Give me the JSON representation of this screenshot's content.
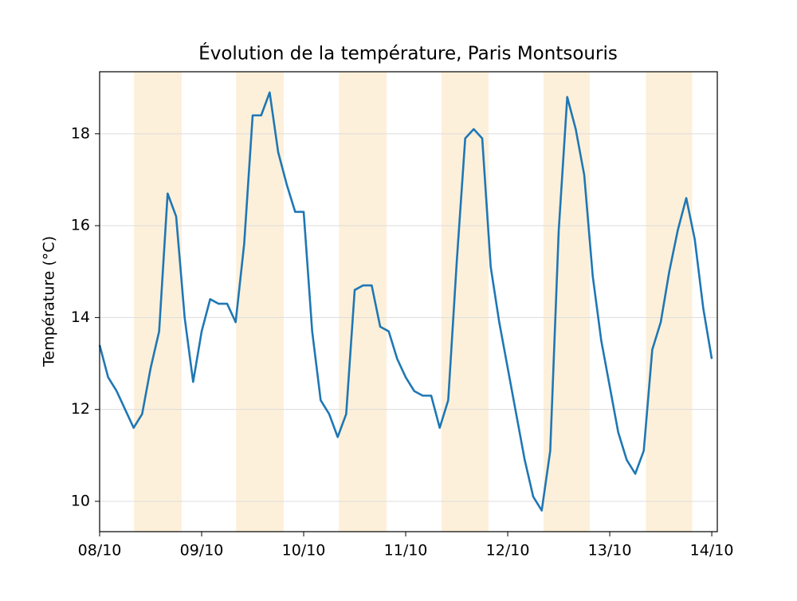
{
  "chart_data": {
    "type": "line",
    "title": "Évolution de la température, Paris Montsouris",
    "ylabel": "Température (°C)",
    "x": [
      0,
      2,
      4,
      6,
      8,
      10,
      12,
      14,
      16,
      18,
      20,
      22,
      24,
      26,
      28,
      30,
      32,
      34,
      36,
      38,
      40,
      42,
      44,
      46,
      48,
      50,
      52,
      54,
      56,
      58,
      60,
      62,
      64,
      66,
      68,
      70,
      72,
      74,
      76,
      78,
      80,
      82,
      84,
      86,
      88,
      90,
      92,
      94,
      96,
      98,
      100,
      102,
      104,
      106,
      108,
      110,
      112,
      114,
      116,
      118,
      120,
      122,
      124,
      126,
      128,
      130,
      132,
      134,
      136,
      138,
      140,
      142,
      144
    ],
    "series": [
      {
        "name": "Température",
        "color": "#1f77b4",
        "values": [
          13.4,
          12.7,
          12.4,
          12.0,
          11.6,
          11.9,
          12.9,
          13.7,
          16.7,
          16.2,
          14.0,
          12.6,
          13.7,
          14.4,
          14.3,
          14.3,
          13.9,
          15.6,
          18.4,
          18.4,
          18.9,
          17.6,
          16.9,
          16.3,
          16.3,
          13.7,
          12.2,
          11.9,
          11.4,
          11.9,
          14.6,
          14.7,
          14.7,
          13.8,
          13.7,
          13.1,
          12.7,
          12.4,
          12.3,
          12.3,
          11.6,
          12.2,
          15.2,
          17.9,
          18.1,
          17.9,
          15.1,
          13.9,
          12.9,
          11.9,
          10.9,
          10.1,
          9.8,
          11.1,
          15.9,
          18.8,
          18.1,
          17.1,
          14.9,
          13.5,
          12.5,
          11.5,
          10.9,
          10.6,
          11.1,
          13.3,
          13.9,
          15.0,
          15.9,
          16.6,
          15.7,
          14.2,
          13.1
        ]
      }
    ],
    "spans": [
      [
        8.1,
        19.3
      ],
      [
        32.1,
        43.3
      ],
      [
        56.3,
        67.5
      ],
      [
        80.4,
        91.5
      ],
      [
        104.4,
        115.3
      ],
      [
        128.5,
        139.4
      ]
    ],
    "span_color": "#fdf0da",
    "xlim": [
      0,
      145.3
    ],
    "xticks": [
      {
        "value": 0,
        "label": "08/10"
      },
      {
        "value": 24,
        "label": "09/10"
      },
      {
        "value": 48,
        "label": "10/10"
      },
      {
        "value": 72,
        "label": "11/10"
      },
      {
        "value": 96,
        "label": "12/10"
      },
      {
        "value": 120,
        "label": "13/10"
      },
      {
        "value": 144,
        "label": "14/10"
      }
    ],
    "ylim": [
      9.34,
      19.35
    ],
    "yticks": [
      10,
      12,
      14,
      16,
      18
    ],
    "grid": true
  }
}
